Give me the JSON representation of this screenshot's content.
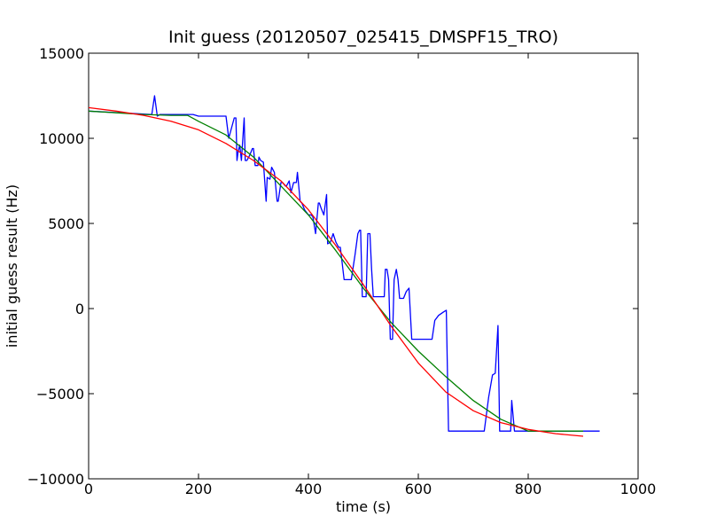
{
  "chart_data": {
    "type": "line",
    "title": "Init guess (20120507_025415_DMSPF15_TRO)",
    "xlabel": "time (s)",
    "ylabel": "initial guess result (Hz)",
    "xlim": [
      0,
      1000
    ],
    "ylim": [
      -10000,
      15000
    ],
    "x_ticks": [
      0,
      200,
      400,
      600,
      800,
      1000
    ],
    "y_ticks": [
      -10000,
      -5000,
      0,
      5000,
      10000,
      15000
    ],
    "x_tick_labels": [
      "0",
      "200",
      "400",
      "600",
      "800",
      "1000"
    ],
    "y_tick_labels": [
      "−10000",
      "−5000",
      "0",
      "5000",
      "10000",
      "15000"
    ],
    "grid": false,
    "legend": "none",
    "series": [
      {
        "color": "#0000ff",
        "x": [
          0,
          115,
          120,
          125,
          130,
          190,
          200,
          240,
          245,
          250,
          255,
          265,
          268,
          270,
          272,
          275,
          278,
          283,
          285,
          288,
          293,
          298,
          300,
          303,
          308,
          310,
          313,
          318,
          323,
          325,
          330,
          333,
          338,
          343,
          345,
          350,
          353,
          358,
          360,
          365,
          368,
          373,
          378,
          380,
          385,
          388,
          393,
          400,
          405,
          408,
          413,
          418,
          420,
          423,
          428,
          433,
          435,
          440,
          445,
          450,
          455,
          458,
          465,
          470,
          473,
          478,
          485,
          490,
          493,
          495,
          498,
          500,
          505,
          508,
          512,
          515,
          518,
          521,
          525,
          528,
          530,
          533,
          535,
          538,
          540,
          543,
          546,
          549,
          553,
          556,
          560,
          563,
          566,
          570,
          573,
          578,
          583,
          588,
          595,
          600,
          613,
          625,
          630,
          637,
          646,
          651,
          655,
          688,
          720,
          728,
          735,
          740,
          745,
          748,
          760,
          765,
          768,
          770,
          775,
          780,
          790,
          800,
          815,
          825,
          850,
          875,
          900,
          930
        ],
        "y": [
          11600,
          11400,
          12500,
          11300,
          11400,
          11400,
          11300,
          11300,
          11300,
          11300,
          10000,
          11200,
          11200,
          8700,
          9200,
          9600,
          8700,
          11200,
          8700,
          8700,
          9000,
          9400,
          9400,
          8400,
          8400,
          8900,
          8700,
          8600,
          6300,
          7700,
          7600,
          8300,
          8000,
          6300,
          6300,
          7400,
          7400,
          7200,
          7200,
          7500,
          6800,
          7400,
          7400,
          8000,
          6300,
          6200,
          5800,
          5500,
          5500,
          5400,
          4400,
          6200,
          6200,
          5900,
          5500,
          6700,
          3800,
          3900,
          4400,
          3900,
          3600,
          3600,
          1700,
          1700,
          1700,
          1700,
          3200,
          4400,
          4600,
          4600,
          700,
          700,
          700,
          4400,
          4400,
          2300,
          700,
          700,
          700,
          700,
          700,
          700,
          700,
          700,
          2300,
          2300,
          1700,
          -1800,
          -1800,
          1700,
          2300,
          1700,
          600,
          600,
          600,
          1000,
          1200,
          -1800,
          -1800,
          -1800,
          -1800,
          -1800,
          -700,
          -400,
          -200,
          -100,
          -7200,
          -7200,
          -7200,
          -5200,
          -3900,
          -3800,
          -1000,
          -7200,
          -7200,
          -7200,
          -7200,
          -5400,
          -7200,
          -7200,
          -7200,
          -7200,
          -7200,
          -7200,
          -7200,
          -7200,
          -7200,
          -7200
        ]
      },
      {
        "color": "#008000",
        "x": [
          0,
          50,
          100,
          150,
          180,
          200,
          250,
          300,
          350,
          400,
          450,
          500,
          550,
          600,
          650,
          700,
          750,
          800,
          850,
          900
        ],
        "y": [
          11600,
          11500,
          11400,
          11350,
          11350,
          11000,
          10200,
          8900,
          7200,
          5500,
          3400,
          1200,
          -800,
          -2500,
          -4000,
          -5400,
          -6500,
          -7200,
          -7200,
          -7200
        ]
      },
      {
        "color": "#ff0000",
        "x": [
          0,
          50,
          100,
          150,
          200,
          250,
          300,
          350,
          400,
          450,
          500,
          550,
          600,
          650,
          700,
          750,
          800,
          850,
          900
        ],
        "y": [
          11800,
          11600,
          11350,
          11000,
          10500,
          9700,
          8700,
          7500,
          5800,
          3700,
          1400,
          -1000,
          -3200,
          -4900,
          -6000,
          -6700,
          -7100,
          -7350,
          -7500
        ]
      }
    ]
  }
}
